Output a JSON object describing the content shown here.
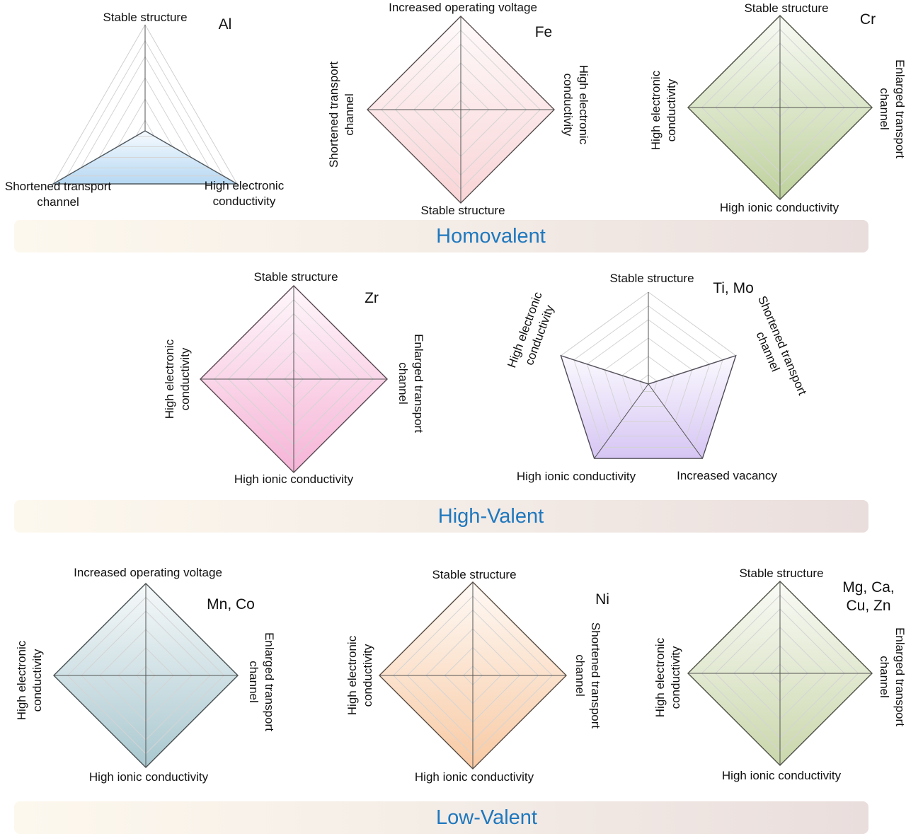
{
  "groups": [
    {
      "name": "Homovalent"
    },
    {
      "name": "High-Valent"
    },
    {
      "name": "Low-Valent"
    }
  ],
  "radars": [
    {
      "element": "Al",
      "color": "#9ecbef",
      "axes": [
        {
          "label": [
            "Stable structure"
          ],
          "value": 0
        },
        {
          "label": [
            "High electronic",
            "conductivity"
          ],
          "value": 1
        },
        {
          "label": [
            "Shortened transport",
            "channel"
          ],
          "value": 1
        }
      ]
    },
    {
      "element": "Fe",
      "color": "#f7c6c9",
      "axes": [
        {
          "label": [
            "Increased operating voltage"
          ],
          "value": 1
        },
        {
          "label": [
            "High electronic",
            "conductivity"
          ],
          "value": 1
        },
        {
          "label": [
            "Stable structure"
          ],
          "value": 1
        },
        {
          "label": [
            "Shortened transport",
            "channel"
          ],
          "value": 1
        }
      ]
    },
    {
      "element": "Cr",
      "color": "#a9c27c",
      "axes": [
        {
          "label": [
            "Stable structure"
          ],
          "value": 1
        },
        {
          "label": [
            "Enlarged transport",
            "channel"
          ],
          "value": 1
        },
        {
          "label": [
            "High ionic conductivity"
          ],
          "value": 1
        },
        {
          "label": [
            "High electronic",
            "conductivity"
          ],
          "value": 1
        }
      ]
    },
    {
      "element": "Zr",
      "color": "#f39bc9",
      "axes": [
        {
          "label": [
            "Stable structure"
          ],
          "value": 1
        },
        {
          "label": [
            "Enlarged transport",
            "channel"
          ],
          "value": 1
        },
        {
          "label": [
            "High ionic conductivity"
          ],
          "value": 1
        },
        {
          "label": [
            "High electronic",
            "conductivity"
          ],
          "value": 1
        }
      ]
    },
    {
      "element": "Ti, Mo",
      "color": "#c8b2f0",
      "axes": [
        {
          "label": [
            "Stable structure"
          ],
          "value": 0
        },
        {
          "label": [
            "Shortened transport",
            "channel"
          ],
          "value": 1
        },
        {
          "label": [
            "Increased vacancy"
          ],
          "value": 1
        },
        {
          "label": [
            "High ionic conductivity"
          ],
          "value": 1
        },
        {
          "label": [
            "High electronic",
            "conductivity"
          ],
          "value": 1
        }
      ]
    },
    {
      "element": "Mn, Co",
      "color": "#8db6c0",
      "axes": [
        {
          "label": [
            "Increased operating voltage"
          ],
          "value": 1
        },
        {
          "label": [
            "Enlarged transport",
            "channel"
          ],
          "value": 1
        },
        {
          "label": [
            "High ionic conductivity"
          ],
          "value": 1
        },
        {
          "label": [
            "High electronic",
            "conductivity"
          ],
          "value": 1
        }
      ]
    },
    {
      "element": "Ni",
      "color": "#f6b885",
      "axes": [
        {
          "label": [
            "Stable structure"
          ],
          "value": 1
        },
        {
          "label": [
            "Shortened transport",
            "channel"
          ],
          "value": 1
        },
        {
          "label": [
            "High ionic conductivity"
          ],
          "value": 1
        },
        {
          "label": [
            "High electronic",
            "conductivity"
          ],
          "value": 1
        }
      ]
    },
    {
      "element": "Mg, Ca, Cu, Zn",
      "color": "#b8c98f",
      "axes": [
        {
          "label": [
            "Stable structure"
          ],
          "value": 1
        },
        {
          "label": [
            "Enlarged transport",
            "channel"
          ],
          "value": 1
        },
        {
          "label": [
            "High ionic conductivity"
          ],
          "value": 1
        },
        {
          "label": [
            "High electronic",
            "conductivity"
          ],
          "value": 1
        }
      ]
    }
  ]
}
